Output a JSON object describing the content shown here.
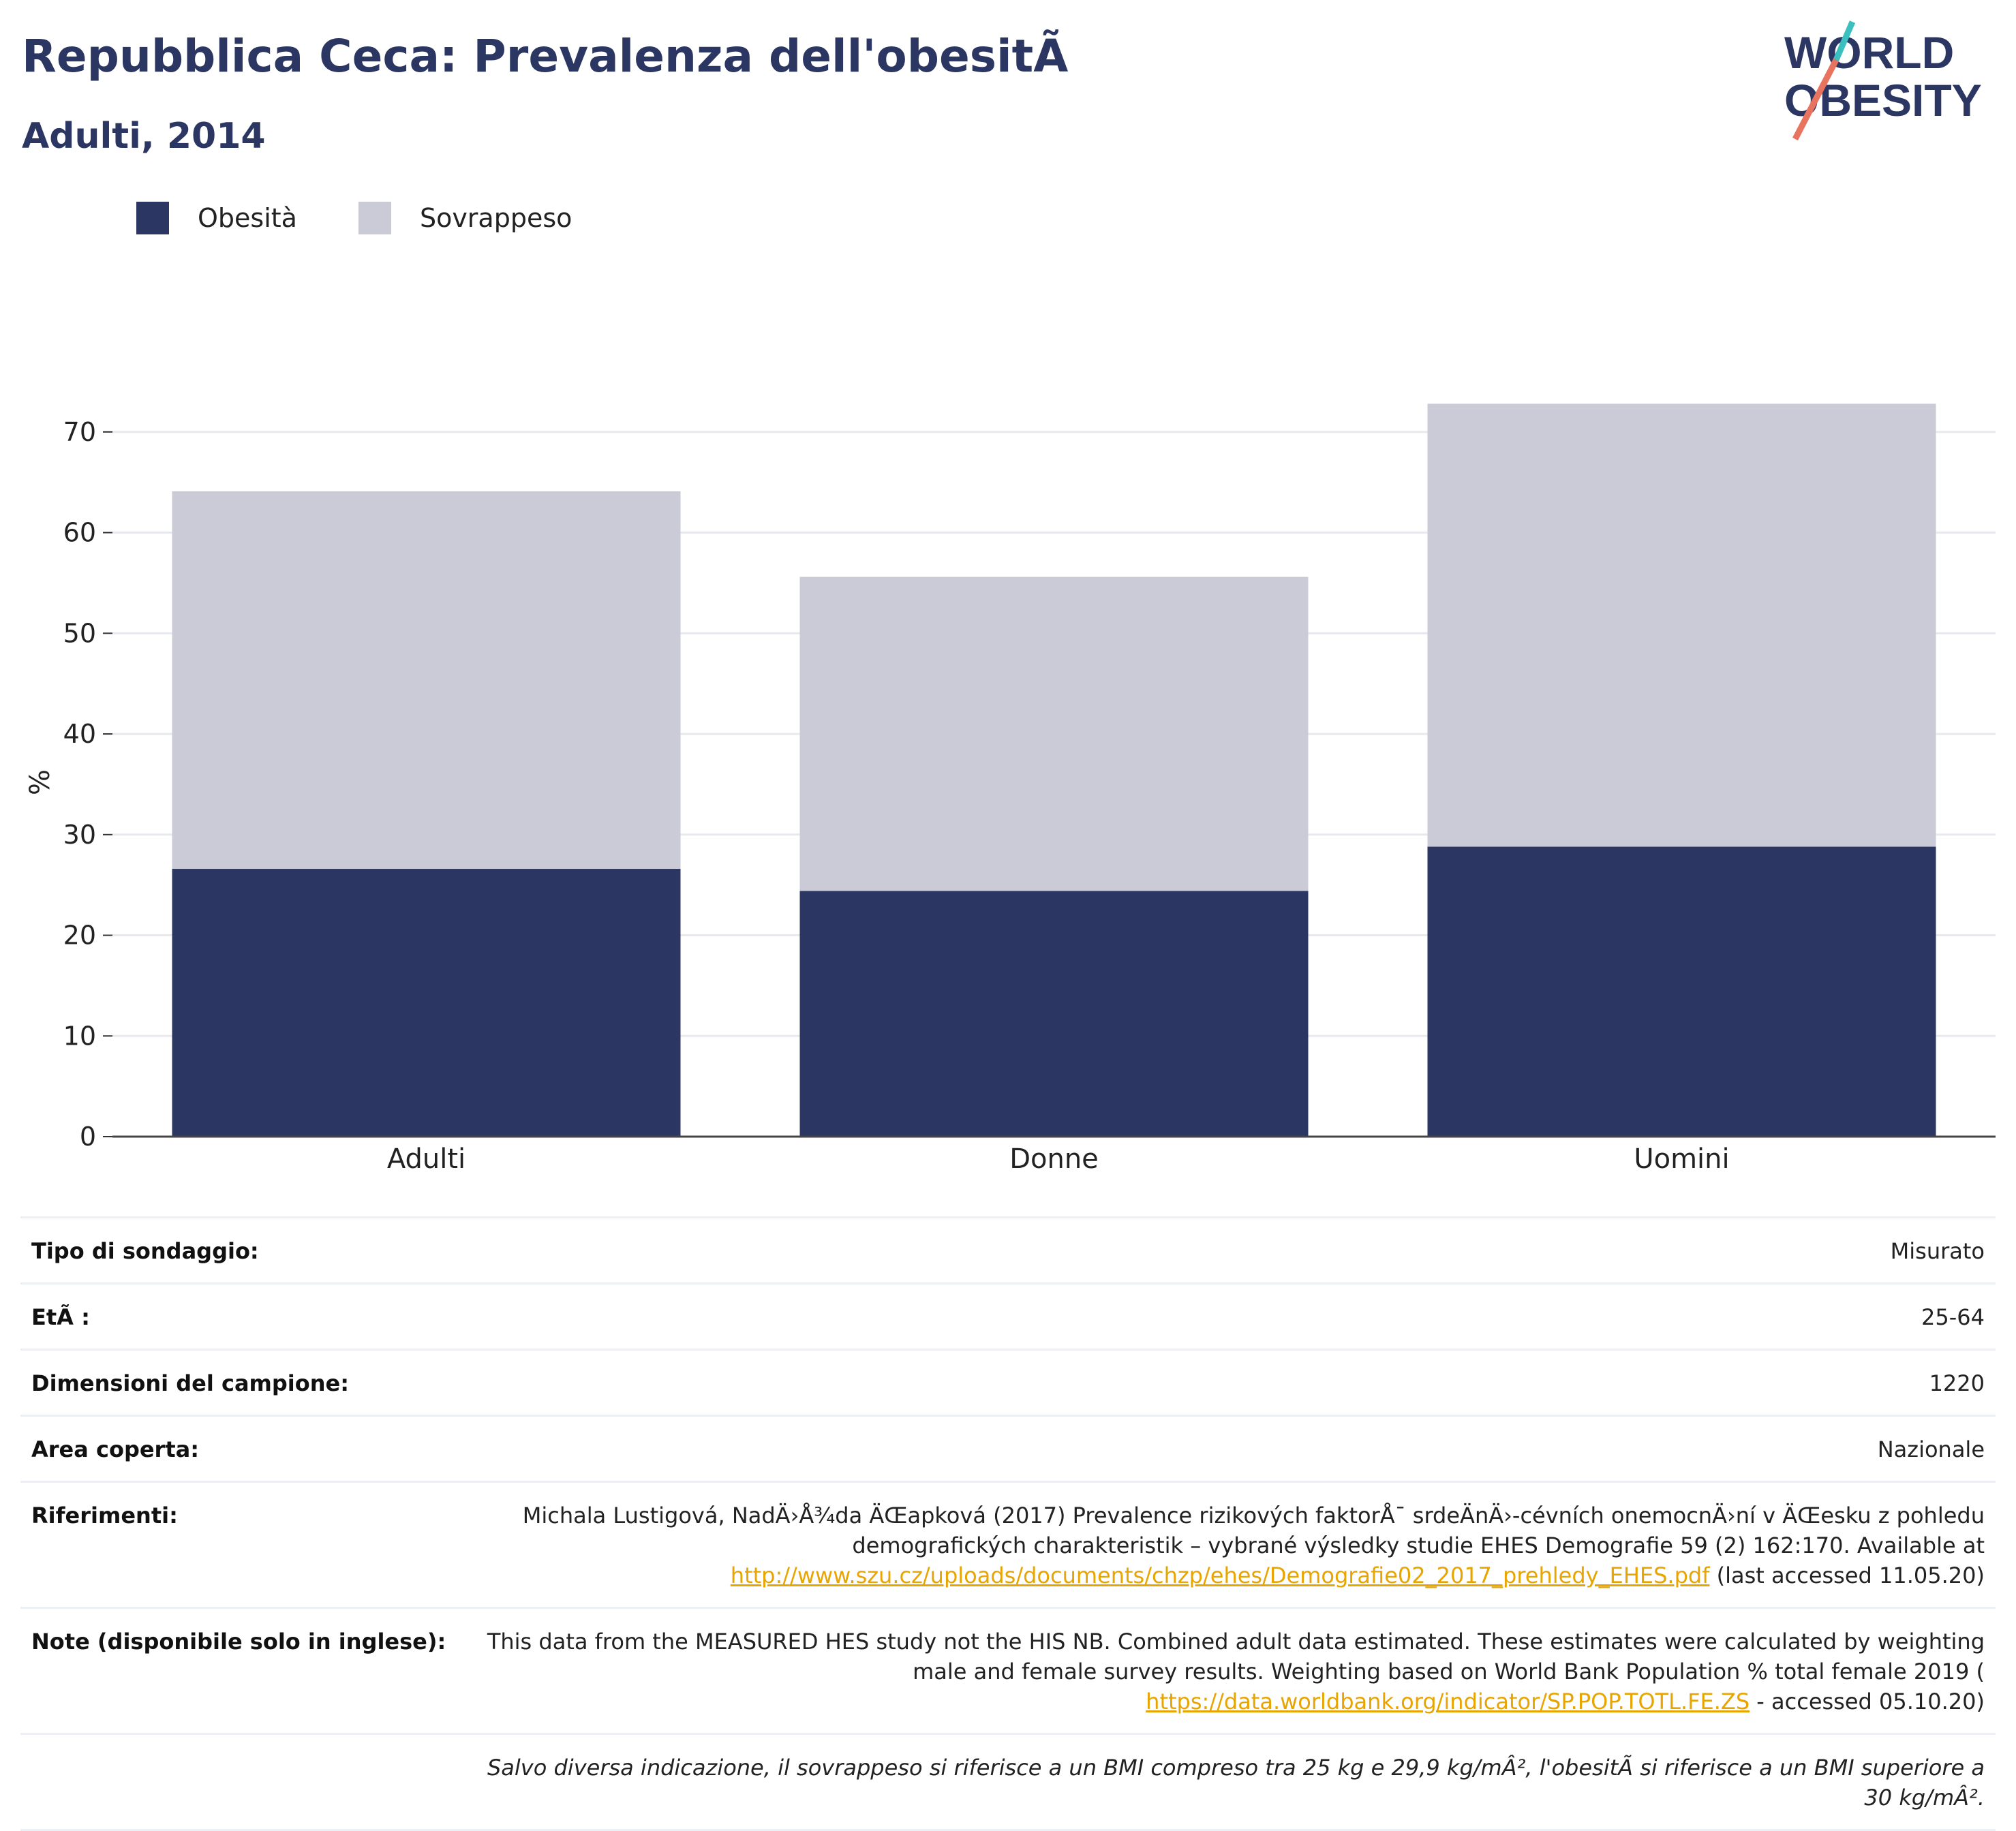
{
  "header": {
    "title": "Repubblica Ceca: Prevalenza dell'obesitÃ",
    "subtitle": "Adulti, 2014"
  },
  "logo": {
    "line1": "WORLD",
    "line2": "OBESITY"
  },
  "colors": {
    "obesity": "#2b3762",
    "overweight": "#cacbd6",
    "accent_teal": "#3bbfbf",
    "accent_coral": "#e8735f"
  },
  "chart_data": {
    "type": "bar",
    "stacked": true,
    "categories": [
      "Adulti",
      "Donne",
      "Uomini"
    ],
    "series": [
      {
        "name": "Obesità",
        "values": [
          26.6,
          24.4,
          28.8
        ]
      },
      {
        "name": "Sovrappeso",
        "values": [
          37.5,
          31.2,
          44.0
        ]
      }
    ],
    "ylabel": "%",
    "ylim": [
      0,
      75
    ],
    "yticks": [
      0,
      10,
      20,
      30,
      40,
      50,
      60,
      70
    ],
    "grid": true,
    "legend": "top-left"
  },
  "meta": {
    "survey_label": "Tipo di sondaggio:",
    "survey_value": "Misurato",
    "age_label": "EtÃ :",
    "age_value": "25-64",
    "sample_label": "Dimensioni del campione:",
    "sample_value": "1220",
    "area_label": "Area coperta:",
    "area_value": "Nazionale",
    "ref_label": "Riferimenti:",
    "ref_text1": "Michala Lustigová, NadÄ›Å¾da ÄŒapková (2017) Prevalence rizikových faktorÅ¯ srdeÄnÄ›-cévních onemocnÄ›ní v ÄŒesku z pohledu demografických charakteristik – vybrané výsledky studie EHES Demografie 59 (2) 162:170. Available at",
    "ref_link": "http://www.szu.cz/uploads/documents/chzp/ehes/Demografie02_2017_prehledy_EHES.pdf",
    "ref_text2": "(last accessed 11.05.20)",
    "notes_label": "Note (disponibile solo in inglese):",
    "notes_text1": "This data from the MEASURED HES study not the HIS NB. Combined adult data estimated. These estimates were calculated by weighting male and female survey results. Weighting based on World Bank Population % total female 2019 (",
    "notes_link": "https://data.worldbank.org/indicator/SP.POP.TOTL.FE.ZS",
    "notes_text2": "- accessed 05.10.20)",
    "footnote": "Salvo diversa indicazione, il sovrappeso si riferisce a un BMI compreso tra 25 kg e 29,9 kg/mÂ², l'obesitÃ si riferisce a un BMI superiore a 30 kg/mÂ²."
  }
}
